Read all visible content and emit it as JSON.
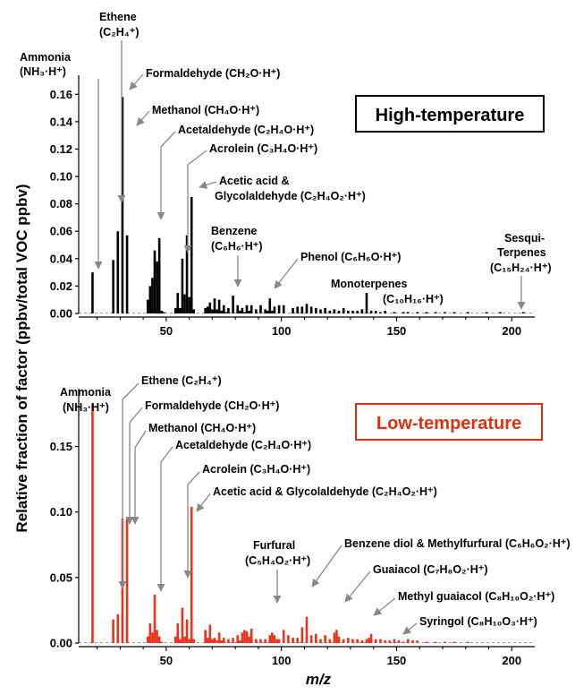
{
  "chart_data": [
    {
      "type": "bar",
      "title": "High-temperature",
      "title_color": "#000000",
      "bar_color": "#000000",
      "ylabel": "Relative fraction of factor (ppbv/total VOC ppbv)",
      "xlabel": "m/z",
      "xlim": [
        12,
        210
      ],
      "ylim": [
        0,
        0.17
      ],
      "x_ticks": [
        50,
        100,
        150,
        200
      ],
      "y_ticks": [
        0.0,
        0.02,
        0.04,
        0.06,
        0.08,
        0.1,
        0.12,
        0.14,
        0.16
      ],
      "y_tick_labels": [
        "0.00",
        "0.02",
        "0.04",
        "0.06",
        "0.08",
        "0.10",
        "0.12",
        "0.14",
        "0.16"
      ],
      "x": [
        18,
        27,
        29,
        31,
        33,
        42,
        43,
        44,
        45,
        46,
        47,
        48,
        49,
        54,
        55,
        56,
        57,
        58,
        59,
        60,
        61,
        62,
        67,
        68,
        69,
        70,
        71,
        72,
        73,
        74,
        75,
        76,
        77,
        79,
        81,
        82,
        83,
        84,
        85,
        86,
        87,
        89,
        91,
        93,
        94,
        95,
        96,
        97,
        99,
        101,
        105,
        107,
        109,
        111,
        113,
        115,
        117,
        119,
        121,
        123,
        125,
        127,
        129,
        131,
        133,
        135,
        137,
        139,
        141,
        143,
        145,
        149,
        153,
        155,
        159,
        163,
        167,
        171,
        175,
        181,
        189,
        195,
        205
      ],
      "values": [
        0.03,
        0.039,
        0.06,
        0.158,
        0.057,
        0.01,
        0.02,
        0.026,
        0.046,
        0.038,
        0.055,
        0.002,
        0.001,
        0.004,
        0.015,
        0.004,
        0.04,
        0.014,
        0.057,
        0.012,
        0.085,
        0.003,
        0.004,
        0.005,
        0.008,
        0.003,
        0.011,
        0.003,
        0.01,
        0.002,
        0.006,
        0.001,
        0.004,
        0.013,
        0.006,
        0.002,
        0.004,
        0.001,
        0.006,
        0.002,
        0.006,
        0.003,
        0.006,
        0.003,
        0.002,
        0.011,
        0.002,
        0.005,
        0.006,
        0.006,
        0.004,
        0.005,
        0.005,
        0.007,
        0.005,
        0.004,
        0.003,
        0.004,
        0.002,
        0.003,
        0.002,
        0.004,
        0.002,
        0.002,
        0.002,
        0.003,
        0.015,
        0.002,
        0.002,
        0.001,
        0.002,
        0.001,
        0.001,
        0.001,
        0.001,
        0.001,
        0.001,
        0.001,
        0.001,
        0.001,
        0.001,
        0.001,
        0.001
      ],
      "annotations": [
        {
          "label": "Ammonia",
          "formula": "(NH₃·H⁺)"
        },
        {
          "label": "Ethene",
          "formula": "(C₂H₄⁺)"
        },
        {
          "label": "Formaldehyde (CH₂O·H⁺)"
        },
        {
          "label": "Methanol (CH₄O·H⁺)"
        },
        {
          "label": "Acetaldehyde (C₂H₄O·H⁺)"
        },
        {
          "label": "Acrolein (C₃H₄O·H⁺)"
        },
        {
          "label": "Acetic acid &",
          "formula": "Glycolaldehyde (C₂H₄O₂·H⁺)"
        },
        {
          "label": "Benzene",
          "formula": "(C₆H₆·H⁺)"
        },
        {
          "label": "Phenol (C₆H₆O·H⁺)"
        },
        {
          "label": "Monoterpenes",
          "formula": "(C₁₀H₁₆·H⁺)"
        },
        {
          "label": "Sesqui-",
          "label2": "Terpenes",
          "formula": "(C₁₅H₂₄·H⁺)"
        }
      ]
    },
    {
      "type": "bar",
      "title": "Low-temperature",
      "title_color": "#e03010",
      "bar_color": "#e8341a",
      "xlim": [
        12,
        210
      ],
      "ylim": [
        0,
        0.19
      ],
      "x_ticks": [
        50,
        100,
        150,
        200
      ],
      "x_tick_labels": [
        "50",
        "100",
        "150",
        "200"
      ],
      "y_ticks": [
        0.0,
        0.05,
        0.1,
        0.15
      ],
      "y_tick_labels": [
        "0.00",
        "0.05",
        "0.10",
        "0.15"
      ],
      "x": [
        18,
        27,
        29,
        31,
        33,
        42,
        43,
        44,
        45,
        46,
        47,
        48,
        54,
        55,
        56,
        57,
        58,
        59,
        60,
        61,
        62,
        67,
        68,
        69,
        70,
        71,
        72,
        73,
        74,
        75,
        77,
        79,
        81,
        82,
        83,
        84,
        85,
        86,
        87,
        89,
        91,
        93,
        95,
        96,
        97,
        98,
        99,
        101,
        103,
        105,
        107,
        109,
        111,
        113,
        115,
        117,
        119,
        121,
        123,
        124,
        125,
        127,
        129,
        131,
        133,
        135,
        137,
        138,
        139,
        141,
        143,
        145,
        147,
        149,
        151,
        153,
        155,
        157,
        159,
        163,
        167,
        171,
        175,
        181
      ],
      "values": [
        0.183,
        0.018,
        0.022,
        0.095,
        0.095,
        0.005,
        0.015,
        0.008,
        0.037,
        0.01,
        0.005,
        0.001,
        0.005,
        0.015,
        0.003,
        0.027,
        0.005,
        0.018,
        0.003,
        0.104,
        0.003,
        0.01,
        0.004,
        0.014,
        0.003,
        0.004,
        0.002,
        0.008,
        0.002,
        0.004,
        0.003,
        0.004,
        0.006,
        0.002,
        0.008,
        0.01,
        0.009,
        0.005,
        0.011,
        0.003,
        0.003,
        0.003,
        0.006,
        0.008,
        0.006,
        0.003,
        0.003,
        0.01,
        0.006,
        0.004,
        0.004,
        0.012,
        0.02,
        0.006,
        0.007,
        0.003,
        0.006,
        0.003,
        0.008,
        0.01,
        0.005,
        0.003,
        0.004,
        0.003,
        0.003,
        0.002,
        0.003,
        0.004,
        0.007,
        0.003,
        0.003,
        0.002,
        0.002,
        0.003,
        0.002,
        0.001,
        0.003,
        0.002,
        0.002,
        0.001,
        0.001,
        0.001,
        0.001,
        0.001
      ],
      "annotations": [
        {
          "label": "Ammonia",
          "formula": "(NH₃·H⁺)"
        },
        {
          "label": "Ethene (C₂H₄⁺)"
        },
        {
          "label": "Formaldehyde (CH₂O·H⁺)"
        },
        {
          "label": "Methanol (CH₄O·H⁺)"
        },
        {
          "label": "Acetaldehyde (C₂H₄O·H⁺)"
        },
        {
          "label": "Acrolein (C₃H₄O·H⁺)"
        },
        {
          "label": "Acetic acid & Glycolaldehyde (C₂H₄O₂·H⁺)"
        },
        {
          "label": "Furfural",
          "formula": "(C₅H₄O₂·H⁺)"
        },
        {
          "label": "Benzene diol & Methylfurfural (C₆H₆O₂·H⁺)"
        },
        {
          "label": "Guaiacol (C₇H₈O₂·H⁺)"
        },
        {
          "label": "Methyl guaiacol (C₈H₁₀O₂·H⁺)"
        },
        {
          "label": "Syringol (C₈H₁₀O₃·H⁺)"
        }
      ]
    }
  ]
}
